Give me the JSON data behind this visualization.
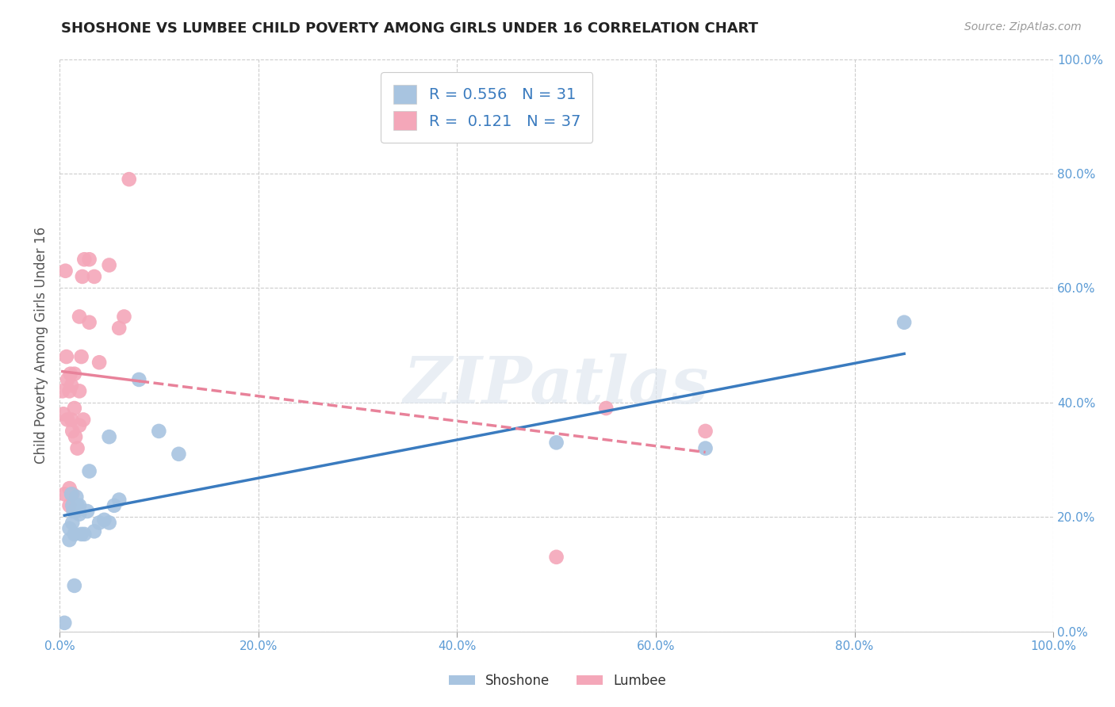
{
  "title": "SHOSHONE VS LUMBEE CHILD POVERTY AMONG GIRLS UNDER 16 CORRELATION CHART",
  "source": "Source: ZipAtlas.com",
  "xlabel": "",
  "ylabel": "Child Poverty Among Girls Under 16",
  "xlim": [
    0.0,
    100.0
  ],
  "ylim": [
    0.0,
    100.0
  ],
  "xticks": [
    0.0,
    20.0,
    40.0,
    60.0,
    80.0,
    100.0
  ],
  "yticks": [
    0.0,
    20.0,
    40.0,
    60.0,
    80.0,
    100.0
  ],
  "xtick_labels": [
    "0.0%",
    "20.0%",
    "40.0%",
    "60.0%",
    "80.0%",
    "100.0%"
  ],
  "ytick_labels": [
    "0.0%",
    "20.0%",
    "40.0%",
    "60.0%",
    "80.0%",
    "100.0%"
  ],
  "shoshone_R": 0.556,
  "shoshone_N": 31,
  "lumbee_R": 0.121,
  "lumbee_N": 37,
  "shoshone_color": "#a8c4e0",
  "lumbee_color": "#f4a7b9",
  "shoshone_line_color": "#3a7bbf",
  "lumbee_line_color": "#e8829a",
  "background_color": "#ffffff",
  "grid_color": "#cccccc",
  "watermark": "ZIPatlas",
  "shoshone_x": [
    0.5,
    1.0,
    1.0,
    1.2,
    1.3,
    1.3,
    1.4,
    1.5,
    1.5,
    1.6,
    1.7,
    1.8,
    2.0,
    2.0,
    2.2,
    2.5,
    2.8,
    3.0,
    3.5,
    4.0,
    4.5,
    5.0,
    5.0,
    5.5,
    6.0,
    8.0,
    10.0,
    12.0,
    50.0,
    65.0,
    85.0
  ],
  "shoshone_y": [
    1.5,
    16.0,
    18.0,
    24.0,
    19.0,
    22.0,
    21.0,
    8.0,
    17.0,
    21.0,
    23.5,
    22.0,
    22.0,
    20.5,
    17.0,
    17.0,
    21.0,
    28.0,
    17.5,
    19.0,
    19.5,
    34.0,
    19.0,
    22.0,
    23.0,
    44.0,
    35.0,
    31.0,
    33.0,
    32.0,
    54.0
  ],
  "lumbee_x": [
    0.3,
    0.4,
    0.5,
    0.6,
    0.7,
    0.8,
    0.8,
    1.0,
    1.0,
    1.0,
    1.1,
    1.2,
    1.2,
    1.3,
    1.3,
    1.5,
    1.5,
    1.6,
    1.8,
    2.0,
    2.0,
    2.0,
    2.2,
    2.3,
    2.4,
    2.5,
    3.0,
    3.0,
    3.5,
    4.0,
    5.0,
    6.0,
    6.5,
    7.0,
    50.0,
    55.0,
    65.0
  ],
  "lumbee_y": [
    42.0,
    38.0,
    24.0,
    63.0,
    48.0,
    44.0,
    37.0,
    25.0,
    42.0,
    22.0,
    45.0,
    43.0,
    37.0,
    24.0,
    35.0,
    45.0,
    39.0,
    34.0,
    32.0,
    42.0,
    36.0,
    55.0,
    48.0,
    62.0,
    37.0,
    65.0,
    54.0,
    65.0,
    62.0,
    47.0,
    64.0,
    53.0,
    55.0,
    79.0,
    13.0,
    39.0,
    35.0
  ]
}
